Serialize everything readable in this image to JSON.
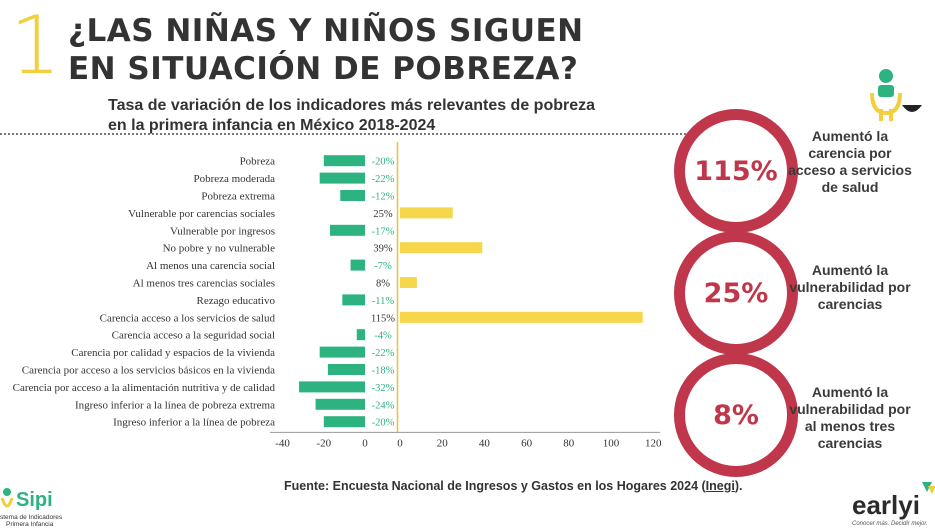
{
  "header": {
    "section_number": "1",
    "title_line1": "¿LAS NIÑAS Y NIÑOS SIGUEN",
    "title_line2": "EN SITUACIÓN DE POBREZA?"
  },
  "colors": {
    "negative": "#2db37f",
    "positive": "#f6d64a",
    "accent": "#c0364a",
    "zero_line": "#e8c531"
  },
  "chart_data": {
    "type": "bar",
    "orientation": "horizontal",
    "title_line1": "Tasa de variación de los indicadores más relevantes de pobreza",
    "title_line2": "en la primera infancia en México 2018-2024",
    "categories": [
      "Pobreza",
      "Pobreza moderada",
      "Pobreza extrema",
      "Vulnerable por carencias sociales",
      "Vulnerable por ingresos",
      "No pobre y no vulnerable",
      "Al menos una carencia social",
      "Al menos tres carencias sociales",
      "Rezago educativo",
      "Carencia acceso a los servicios de salud",
      "Carencia acceso a la seguridad social",
      "Carencia por calidad y espacios de la vivienda",
      "Carencia por acceso a los servicios básicos en la vivienda",
      "Carencia por acceso a la alimentación nutritiva y de calidad",
      "Ingreso inferior a la línea de pobreza extrema",
      "Ingreso inferior a la línea de pobreza"
    ],
    "values": [
      -20,
      -22,
      -12,
      25,
      -17,
      39,
      -7,
      8,
      -11,
      115,
      -4,
      -22,
      -18,
      -32,
      -24,
      -20
    ],
    "value_labels": [
      "-20%",
      "-22%",
      "-12%",
      "25%",
      "-17%",
      "39%",
      "-7%",
      "8%",
      "-11%",
      "115%",
      "-4%",
      "-22%",
      "-18%",
      "-32%",
      "-24%",
      "-20%"
    ],
    "left_ticks": [
      "-40",
      "-20",
      "0"
    ],
    "right_ticks": [
      "0",
      "20",
      "40",
      "60",
      "80",
      "100",
      "120"
    ],
    "xlim_negative": [
      -40,
      0
    ],
    "xlim_positive": [
      0,
      120
    ]
  },
  "highlights": [
    {
      "value": "115%",
      "text_lines": [
        "Aumentó la",
        "carencia por",
        "acceso a servicios",
        "de salud"
      ]
    },
    {
      "value": "25%",
      "text_lines": [
        "Aumentó la",
        "vulnerabilidad por",
        "carencias"
      ]
    },
    {
      "value": "8%",
      "text_lines": [
        "Aumentó la",
        "vulnerabilidad por",
        "al menos tres",
        "carencias"
      ]
    }
  ],
  "source": {
    "prefix": "Fuente: Encuesta Nacional de Ingresos y Gastos en los Hogares 2024 (",
    "link": "Inegi",
    "suffix": ")."
  },
  "logos": {
    "sipi_name": "Sipi",
    "sipi_sub1": "stema de Indicadores",
    "sipi_sub2": "Primera Infancia",
    "earlyi_name": "earlyi",
    "earlyi_tagline": "Conocer más. Decidir mejor."
  }
}
